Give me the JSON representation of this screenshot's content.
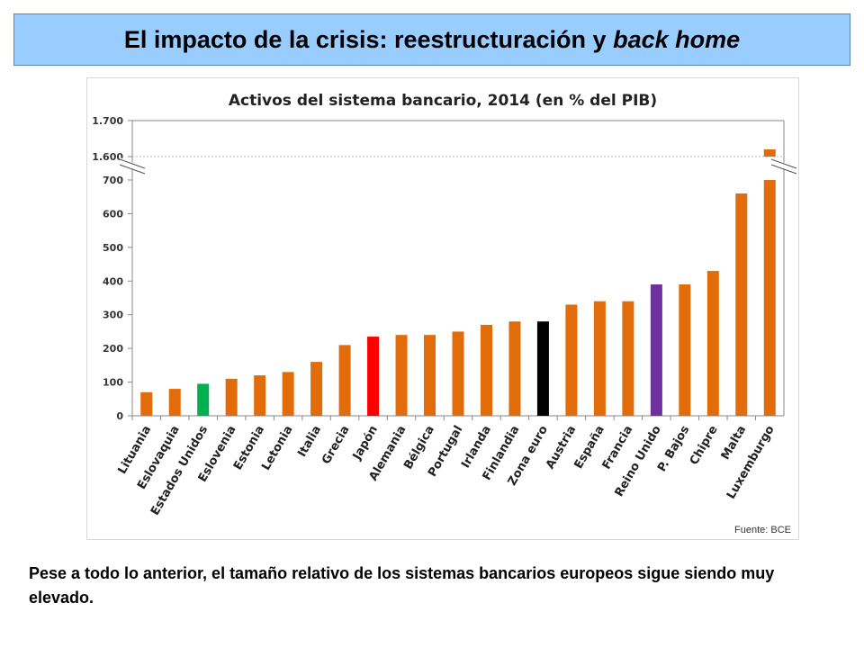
{
  "slide": {
    "title_main": "El impacto de la crisis: reestructuración y ",
    "title_italic": "back home",
    "caption": "Pese a todo lo anterior, el tamaño relativo de los sistemas bancarios europeos sigue siendo muy elevado.",
    "source": "Fuente: BCE"
  },
  "chart_data": {
    "type": "bar",
    "title": "Activos del sistema bancario, 2014 (en % del PIB)",
    "xlabel": "",
    "ylabel": "",
    "categories": [
      "Lituania",
      "Eslovaquia",
      "Estados Unidos",
      "Eslovenia",
      "Estonia",
      "Letonia",
      "Italia",
      "Grecia",
      "Japón",
      "Alemania",
      "Bélgica",
      "Portugal",
      "Irlanda",
      "Finlandia",
      "Zona euro",
      "Austria",
      "España",
      "Francia",
      "Reino Unido",
      "P. Bajos",
      "Chipre",
      "Malta",
      "Luxemburgo"
    ],
    "values": [
      70,
      80,
      95,
      110,
      120,
      130,
      160,
      210,
      235,
      240,
      240,
      250,
      270,
      280,
      280,
      330,
      340,
      340,
      390,
      390,
      430,
      660,
      1620
    ],
    "colors": [
      "#e36c0a",
      "#e36c0a",
      "#00b050",
      "#e36c0a",
      "#e36c0a",
      "#e36c0a",
      "#e36c0a",
      "#e36c0a",
      "#ff0000",
      "#e36c0a",
      "#e36c0a",
      "#e36c0a",
      "#e36c0a",
      "#e36c0a",
      "#000000",
      "#e36c0a",
      "#e36c0a",
      "#e36c0a",
      "#7030a0",
      "#e36c0a",
      "#e36c0a",
      "#e36c0a",
      "#e36c0a"
    ],
    "y_ticks_lower": [
      0,
      100,
      200,
      300,
      400,
      500,
      600,
      700
    ],
    "y_ticks_upper": [
      1600,
      1700
    ],
    "y_tick_labels_lower": [
      "0",
      "100",
      "200",
      "300",
      "400",
      "500",
      "600",
      "700"
    ],
    "y_tick_labels_upper": [
      "1.600",
      "1.700"
    ],
    "ylim_lower": [
      0,
      700
    ],
    "ylim_upper": [
      1600,
      1700
    ],
    "axis_break": true,
    "grid": false,
    "legend": "none"
  }
}
